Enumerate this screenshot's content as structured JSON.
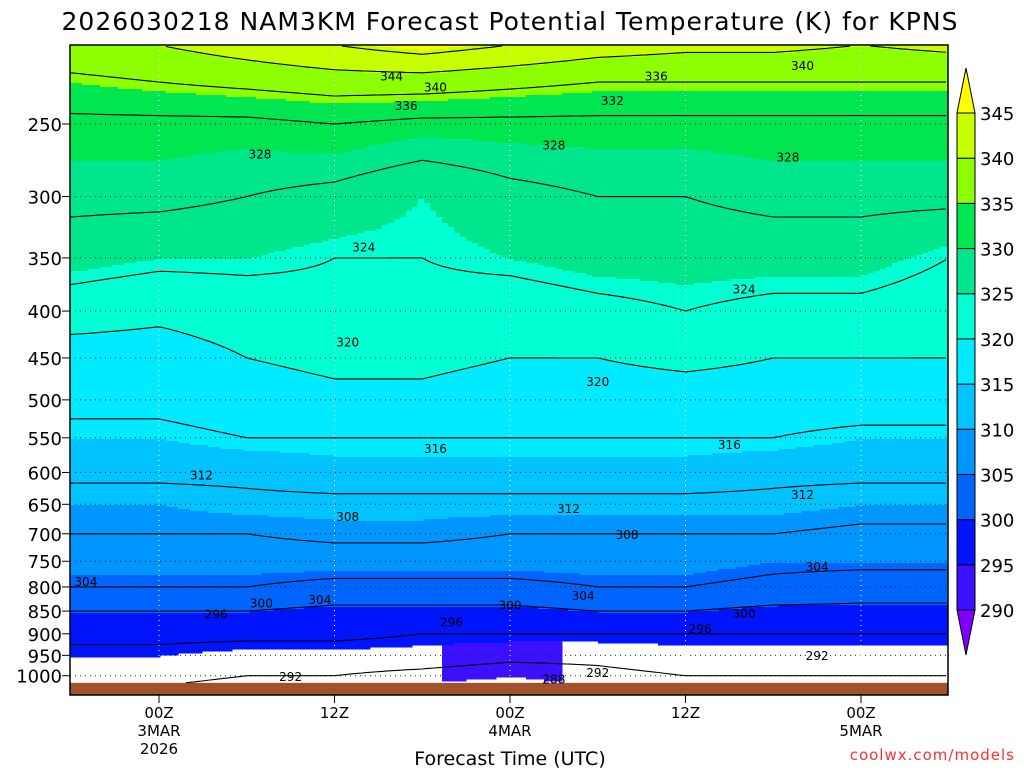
{
  "chart_data": {
    "type": "heatmap",
    "title": "2026030218 NAM3KM Forecast Potential Temperature (K) for KPNS",
    "xlabel": "Forecast Time (UTC)",
    "ylabel": "",
    "credit": "coolwx.com/models",
    "x_units": "hours after 00Z 3MAR 2026",
    "xlim": [
      -6,
      54
    ],
    "ylim_pressure_hpa": [
      1050,
      205
    ],
    "ground_pressure_hpa": 1018,
    "x_ticks": [
      {
        "t": 0,
        "line1": "00Z",
        "line2": "3MAR",
        "line3": "2026"
      },
      {
        "t": 12,
        "line1": "12Z",
        "line2": "",
        "line3": ""
      },
      {
        "t": 24,
        "line1": "00Z",
        "line2": "4MAR",
        "line3": ""
      },
      {
        "t": 36,
        "line1": "12Z",
        "line2": "",
        "line3": ""
      },
      {
        "t": 48,
        "line1": "00Z",
        "line2": "5MAR",
        "line3": ""
      }
    ],
    "y_ticks": [
      "250",
      "300",
      "350",
      "400",
      "450",
      "500",
      "550",
      "600",
      "650",
      "700",
      "750",
      "800",
      "850",
      "900",
      "950",
      "1000"
    ],
    "colorbar": {
      "labels": [
        "345",
        "340",
        "335",
        "330",
        "325",
        "320",
        "315",
        "310",
        "305",
        "300",
        "295",
        "290"
      ],
      "bounds": [
        290,
        295,
        300,
        305,
        310,
        315,
        320,
        325,
        330,
        335,
        340,
        345
      ],
      "colors": [
        "#8000ff",
        "#3c10ff",
        "#0014ff",
        "#0064ff",
        "#0096ff",
        "#00c3ff",
        "#00ebff",
        "#00ffd2",
        "#00e68c",
        "#00e650",
        "#8cff00",
        "#c8ff00",
        "#ffff00"
      ]
    },
    "contour_levels": [
      288,
      292,
      296,
      300,
      304,
      308,
      312,
      316,
      320,
      324,
      328,
      332,
      336,
      340,
      344
    ],
    "levels_hpa": [
      1000,
      950,
      900,
      850,
      800,
      750,
      700,
      650,
      600,
      550,
      500,
      450,
      400,
      350,
      300,
      250,
      225,
      205
    ],
    "times": [
      -6,
      0,
      6,
      12,
      18,
      24,
      30,
      36,
      42,
      48,
      54
    ],
    "theta": [
      [
        293,
        295,
        297,
        300,
        304,
        306,
        308,
        310,
        313,
        315,
        317,
        318,
        322,
        326,
        329,
        331,
        335,
        339
      ],
      [
        293,
        295,
        297,
        300,
        304,
        306,
        308,
        310,
        313,
        315,
        317,
        318,
        321,
        325,
        329,
        331,
        336,
        340
      ],
      [
        292,
        294,
        297,
        300,
        304,
        306,
        308,
        311,
        313,
        316,
        318,
        320,
        322,
        325,
        328,
        331,
        337,
        342
      ],
      [
        292,
        294,
        297,
        299,
        303,
        306,
        309,
        311,
        314,
        316,
        319,
        321,
        323,
        324,
        327,
        332,
        338,
        344
      ],
      [
        291,
        294,
        296,
        299,
        303,
        306,
        309,
        311,
        314,
        316,
        319,
        321,
        323,
        324,
        325,
        331,
        338,
        346
      ],
      [
        290,
        293,
        296,
        299,
        303,
        306,
        308,
        311,
        314,
        316,
        318,
        320,
        322,
        325,
        327,
        331,
        337,
        344
      ],
      [
        291,
        293,
        296,
        300,
        304,
        306,
        308,
        311,
        314,
        316,
        318,
        320,
        323,
        326,
        328,
        331,
        336,
        342
      ],
      [
        292,
        294,
        296,
        300,
        304,
        306,
        308,
        311,
        314,
        316,
        318,
        321,
        324,
        326,
        328,
        331,
        336,
        341
      ],
      [
        292,
        294,
        296,
        299,
        303,
        305,
        308,
        311,
        313,
        316,
        318,
        320,
        323,
        326,
        329,
        331,
        336,
        341
      ],
      [
        292,
        294,
        296,
        299,
        302,
        305,
        307,
        310,
        313,
        315,
        318,
        320,
        323,
        326,
        329,
        331,
        336,
        340
      ],
      [
        292,
        294,
        296,
        299,
        302,
        305,
        307,
        310,
        313,
        315,
        318,
        320,
        322,
        324,
        329,
        331,
        336,
        341
      ]
    ],
    "contour_labels": [
      {
        "text": "344",
        "t": 15.9,
        "p": 222
      },
      {
        "text": "340",
        "t": 18.9,
        "p": 228
      },
      {
        "text": "336",
        "t": 16.9,
        "p": 239
      },
      {
        "text": "336",
        "t": 34,
        "p": 222
      },
      {
        "text": "340",
        "t": 44,
        "p": 216
      },
      {
        "text": "332",
        "t": 31,
        "p": 236
      },
      {
        "text": "328",
        "t": 6.9,
        "p": 270
      },
      {
        "text": "328",
        "t": 27,
        "p": 264
      },
      {
        "text": "328",
        "t": 43,
        "p": 272
      },
      {
        "text": "324",
        "t": 14,
        "p": 341
      },
      {
        "text": "324",
        "t": 40,
        "p": 379
      },
      {
        "text": "320",
        "t": 12.9,
        "p": 433
      },
      {
        "text": "320",
        "t": 30,
        "p": 478
      },
      {
        "text": "316",
        "t": 18.9,
        "p": 566
      },
      {
        "text": "316",
        "t": 39,
        "p": 560
      },
      {
        "text": "312",
        "t": 2.9,
        "p": 605
      },
      {
        "text": "312",
        "t": 28,
        "p": 658
      },
      {
        "text": "312",
        "t": 44,
        "p": 635
      },
      {
        "text": "308",
        "t": 12.9,
        "p": 671
      },
      {
        "text": "308",
        "t": 32,
        "p": 702
      },
      {
        "text": "304",
        "t": -5,
        "p": 790
      },
      {
        "text": "304",
        "t": 11,
        "p": 827
      },
      {
        "text": "304",
        "t": 29,
        "p": 818
      },
      {
        "text": "304",
        "t": 45,
        "p": 761
      },
      {
        "text": "300",
        "t": 7,
        "p": 834
      },
      {
        "text": "300",
        "t": 24,
        "p": 838
      },
      {
        "text": "300",
        "t": 40,
        "p": 856
      },
      {
        "text": "296",
        "t": 3.9,
        "p": 857
      },
      {
        "text": "296",
        "t": 20,
        "p": 875
      },
      {
        "text": "296",
        "t": 37,
        "p": 889
      },
      {
        "text": "292",
        "t": 9,
        "p": 1003
      },
      {
        "text": "292",
        "t": 30,
        "p": 993
      },
      {
        "text": "292",
        "t": 45,
        "p": 952
      },
      {
        "text": "288",
        "t": 27,
        "p": 1010
      }
    ]
  }
}
